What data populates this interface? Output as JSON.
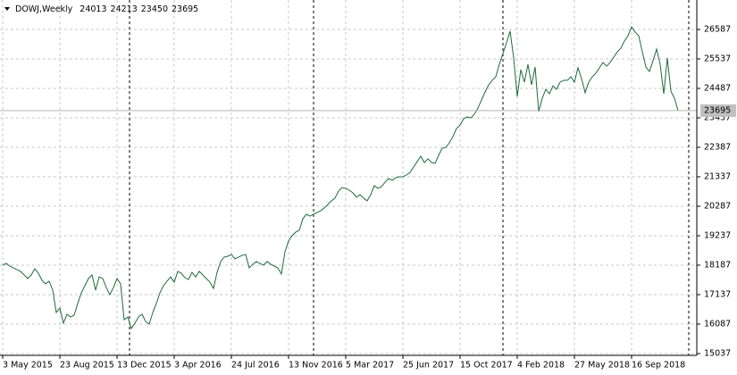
{
  "chart_data": {
    "type": "line",
    "title": "DOWJ,Weekly",
    "ohlc": [
      24013,
      24213,
      23450,
      23695
    ],
    "categories": [
      "3 May 2015",
      null,
      null,
      null,
      null,
      null,
      null,
      null,
      null,
      null,
      null,
      null,
      null,
      null,
      null,
      null,
      "23 Aug 2015",
      null,
      null,
      null,
      null,
      null,
      null,
      null,
      null,
      null,
      null,
      null,
      null,
      null,
      null,
      null,
      "13 Dec 2015",
      null,
      null,
      null,
      null,
      null,
      null,
      null,
      null,
      null,
      null,
      null,
      null,
      null,
      null,
      null,
      "3 Apr 2016",
      null,
      null,
      null,
      null,
      null,
      null,
      null,
      null,
      null,
      null,
      null,
      null,
      null,
      null,
      null,
      "24 Jul 2016",
      null,
      null,
      null,
      null,
      null,
      null,
      null,
      null,
      null,
      null,
      null,
      null,
      null,
      null,
      null,
      "13 Nov 2016",
      null,
      null,
      null,
      null,
      null,
      null,
      null,
      null,
      null,
      null,
      null,
      null,
      null,
      null,
      null,
      "5 Mar 2017",
      null,
      null,
      null,
      null,
      null,
      null,
      null,
      null,
      null,
      null,
      null,
      null,
      null,
      null,
      null,
      "25 Jun 2017",
      null,
      null,
      null,
      null,
      null,
      null,
      null,
      null,
      null,
      null,
      null,
      null,
      null,
      null,
      null,
      "15 Oct 2017",
      null,
      null,
      null,
      null,
      null,
      null,
      null,
      null,
      null,
      null,
      null,
      null,
      null,
      null,
      null,
      "4 Feb 2018",
      null,
      null,
      null,
      null,
      null,
      null,
      null,
      null,
      null,
      null,
      null,
      null,
      null,
      null,
      null,
      "27 May 2018",
      null,
      null,
      null,
      null,
      null,
      null,
      null,
      null,
      null,
      null,
      null,
      null,
      null,
      null,
      null,
      "16 Sep 2018",
      null,
      null,
      null,
      null,
      null,
      null,
      null,
      null,
      null,
      null,
      null,
      null,
      null
    ],
    "series": [
      {
        "name": "DOWJ",
        "color": "#1e6b3c",
        "values": [
          18186,
          18250,
          18155,
          18090,
          18030,
          17965,
          17840,
          17710,
          17840,
          18060,
          17900,
          17645,
          17520,
          17615,
          17300,
          16500,
          16660,
          16120,
          16440,
          16340,
          16405,
          16820,
          17200,
          17455,
          17710,
          17840,
          17300,
          17770,
          17710,
          17390,
          17135,
          17390,
          17710,
          17520,
          16245,
          16340,
          15930,
          16120,
          16340,
          16440,
          16180,
          16085,
          16500,
          16820,
          17200,
          17455,
          17615,
          17770,
          17580,
          17965,
          17900,
          17740,
          17675,
          17930,
          17770,
          17965,
          17840,
          17710,
          17580,
          17360,
          17930,
          18315,
          18475,
          18505,
          18570,
          18410,
          18475,
          18535,
          18570,
          18090,
          18220,
          18315,
          18250,
          18186,
          18315,
          18220,
          18155,
          18090,
          17870,
          18665,
          19045,
          19237,
          19365,
          19430,
          19840,
          20000,
          19935,
          20000,
          20065,
          20130,
          20225,
          20350,
          20480,
          20575,
          20830,
          20955,
          20925,
          20860,
          20765,
          20610,
          20700,
          20575,
          20480,
          20700,
          21020,
          20925,
          20985,
          21145,
          21275,
          21210,
          21305,
          21335,
          21335,
          21400,
          21495,
          21685,
          21880,
          22070,
          21845,
          21975,
          21845,
          21815,
          22100,
          22355,
          22385,
          22545,
          22770,
          23055,
          23180,
          23405,
          23470,
          23435,
          23565,
          23785,
          24075,
          24360,
          24615,
          24775,
          24900,
          25345,
          25730,
          26110,
          26525,
          25570,
          24200,
          25155,
          24710,
          25345,
          24615,
          25250,
          23660,
          24135,
          24455,
          24295,
          24580,
          24455,
          24710,
          24775,
          24775,
          24900,
          24710,
          25220,
          24835,
          24330,
          24710,
          24900,
          25030,
          25220,
          25410,
          25280,
          25410,
          25600,
          25790,
          25920,
          26175,
          26365,
          26680,
          26490,
          26365,
          25790,
          25250,
          25090,
          25475,
          25885,
          25345,
          24295,
          25570,
          24390,
          24135,
          23695
        ]
      }
    ],
    "ylim": [
      14973,
      27637
    ],
    "yticks": [
      15037,
      16087,
      17137,
      18187,
      19237,
      20287,
      21337,
      22387,
      23437,
      24487,
      25537,
      26587
    ],
    "grid": true
  }
}
